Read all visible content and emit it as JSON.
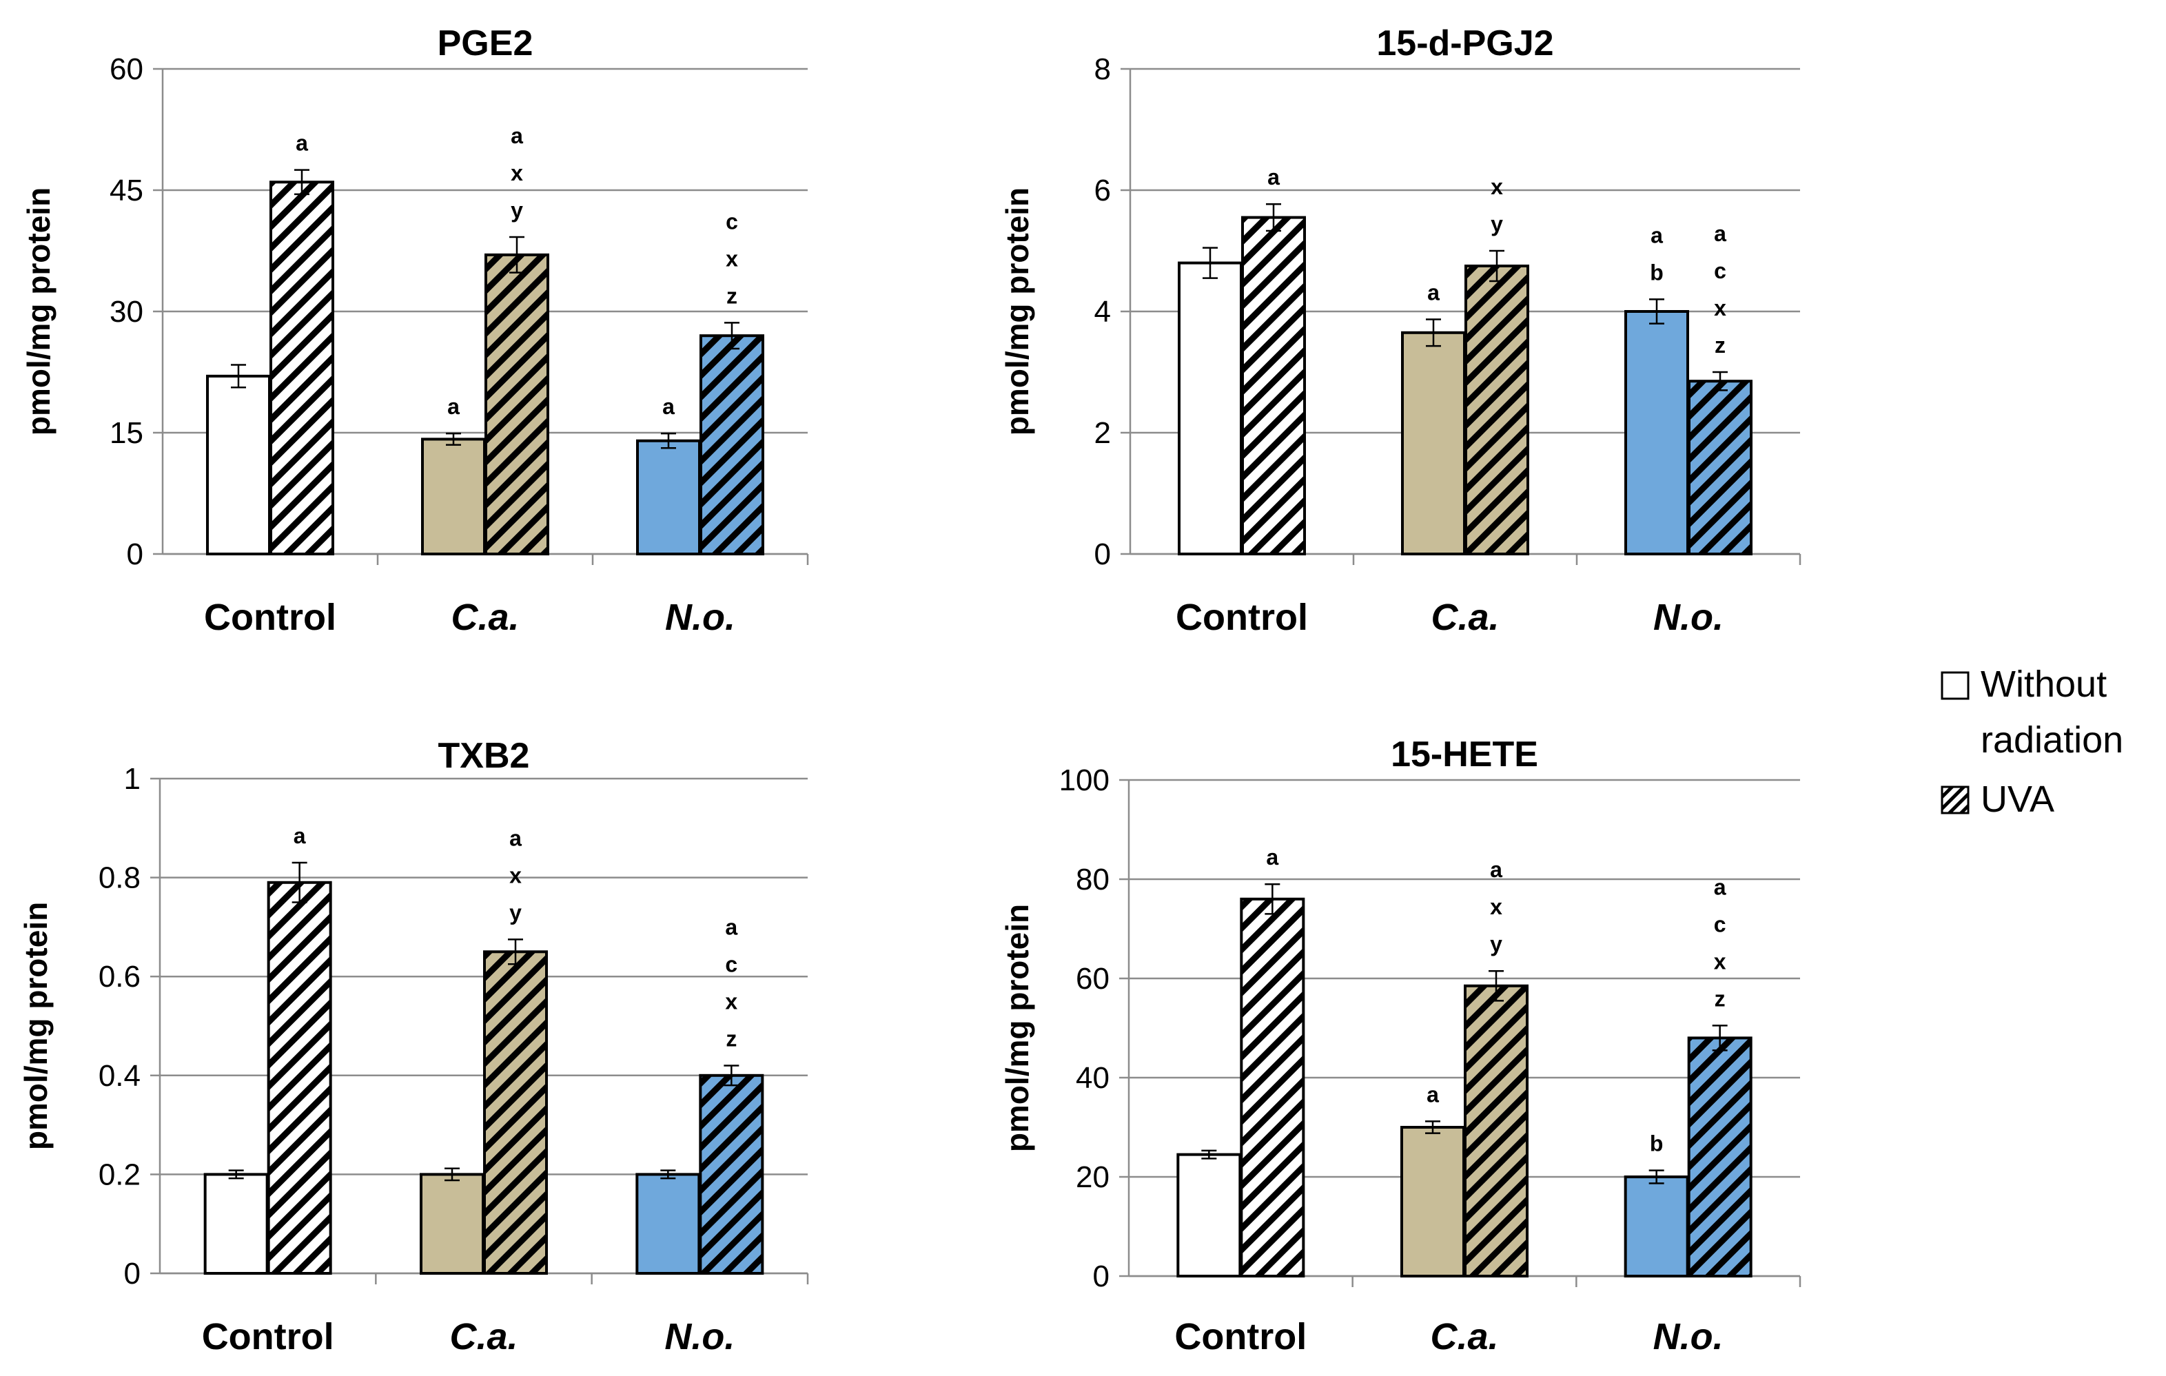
{
  "legend": {
    "without_line1": "Without",
    "without_line2": "radiation",
    "uva": "UVA"
  },
  "chart_data": [
    {
      "type": "bar",
      "title": "PGE2",
      "ylabel": "pmol/mg protein",
      "categories": [
        "Control",
        "C.a.",
        "N.o."
      ],
      "category_italic": [
        false,
        true,
        true
      ],
      "ylim": [
        0,
        60
      ],
      "yticks": [
        "0",
        "15",
        "30",
        "45",
        "60"
      ],
      "ytick_values": [
        0,
        15,
        30,
        45,
        60
      ],
      "fill_colors": [
        "#ffffff",
        "#c8bd98",
        "#6fa8dc"
      ],
      "series": [
        {
          "name": "Without radiation",
          "values": [
            22,
            14.2,
            14
          ],
          "errors": [
            1.4,
            0.7,
            0.9
          ],
          "labels": [
            "",
            "a",
            "a"
          ]
        },
        {
          "name": "UVA",
          "values": [
            46,
            37,
            27
          ],
          "errors": [
            1.5,
            2.2,
            1.6
          ],
          "labels": [
            "a",
            "a\nx\ny",
            "c\nx\nz"
          ]
        }
      ]
    },
    {
      "type": "bar",
      "title": "15-d-PGJ2",
      "ylabel": "pmol/mg protein",
      "categories": [
        "Control",
        "C.a.",
        "N.o."
      ],
      "category_italic": [
        false,
        true,
        true
      ],
      "ylim": [
        0,
        8
      ],
      "yticks": [
        "0",
        "2",
        "4",
        "6",
        "8"
      ],
      "ytick_values": [
        0,
        2,
        4,
        6,
        8
      ],
      "fill_colors": [
        "#ffffff",
        "#c8bd98",
        "#6fa8dc"
      ],
      "series": [
        {
          "name": "Without radiation",
          "values": [
            4.8,
            3.65,
            4
          ],
          "errors": [
            0.25,
            0.22,
            0.2
          ],
          "labels": [
            "",
            "a",
            "a\nb"
          ]
        },
        {
          "name": "UVA",
          "values": [
            5.55,
            4.75,
            2.85
          ],
          "errors": [
            0.22,
            0.25,
            0.15
          ],
          "labels": [
            "a",
            "x\ny",
            "a\nc\nx\nz"
          ]
        }
      ]
    },
    {
      "type": "bar",
      "title": "TXB2",
      "ylabel": "pmol/mg protein",
      "categories": [
        "Control",
        "C.a.",
        "N.o."
      ],
      "category_italic": [
        false,
        true,
        true
      ],
      "ylim": [
        0,
        1
      ],
      "yticks": [
        "0",
        "0.2",
        "0.4",
        "0.6",
        "0.8",
        "1"
      ],
      "ytick_values": [
        0,
        0.2,
        0.4,
        0.6,
        0.8,
        1
      ],
      "fill_colors": [
        "#ffffff",
        "#c8bd98",
        "#6fa8dc"
      ],
      "series": [
        {
          "name": "Without radiation",
          "values": [
            0.2,
            0.2,
            0.2
          ],
          "errors": [
            0.008,
            0.012,
            0.008
          ],
          "labels": [
            "",
            "",
            ""
          ]
        },
        {
          "name": "UVA",
          "values": [
            0.79,
            0.65,
            0.4
          ],
          "errors": [
            0.04,
            0.025,
            0.02
          ],
          "labels": [
            "a",
            "a\nx\ny",
            "a\nc\nx\nz"
          ]
        }
      ]
    },
    {
      "type": "bar",
      "title": "15-HETE",
      "ylabel": "pmol/mg protein",
      "categories": [
        "Control",
        "C.a.",
        "N.o."
      ],
      "category_italic": [
        false,
        true,
        true
      ],
      "ylim": [
        0,
        100
      ],
      "yticks": [
        "0",
        "20",
        "40",
        "60",
        "80",
        "100"
      ],
      "ytick_values": [
        0,
        20,
        40,
        60,
        80,
        100
      ],
      "fill_colors": [
        "#ffffff",
        "#c8bd98",
        "#6fa8dc"
      ],
      "series": [
        {
          "name": "Without radiation",
          "values": [
            24.5,
            30,
            20
          ],
          "errors": [
            0.8,
            1.2,
            1.3
          ],
          "labels": [
            "",
            "a",
            "b"
          ]
        },
        {
          "name": "UVA",
          "values": [
            76,
            58.5,
            48
          ],
          "errors": [
            3,
            3,
            2.5
          ],
          "labels": [
            "a",
            "a\nx\ny",
            "a\nc\nx\nz"
          ]
        }
      ]
    }
  ]
}
